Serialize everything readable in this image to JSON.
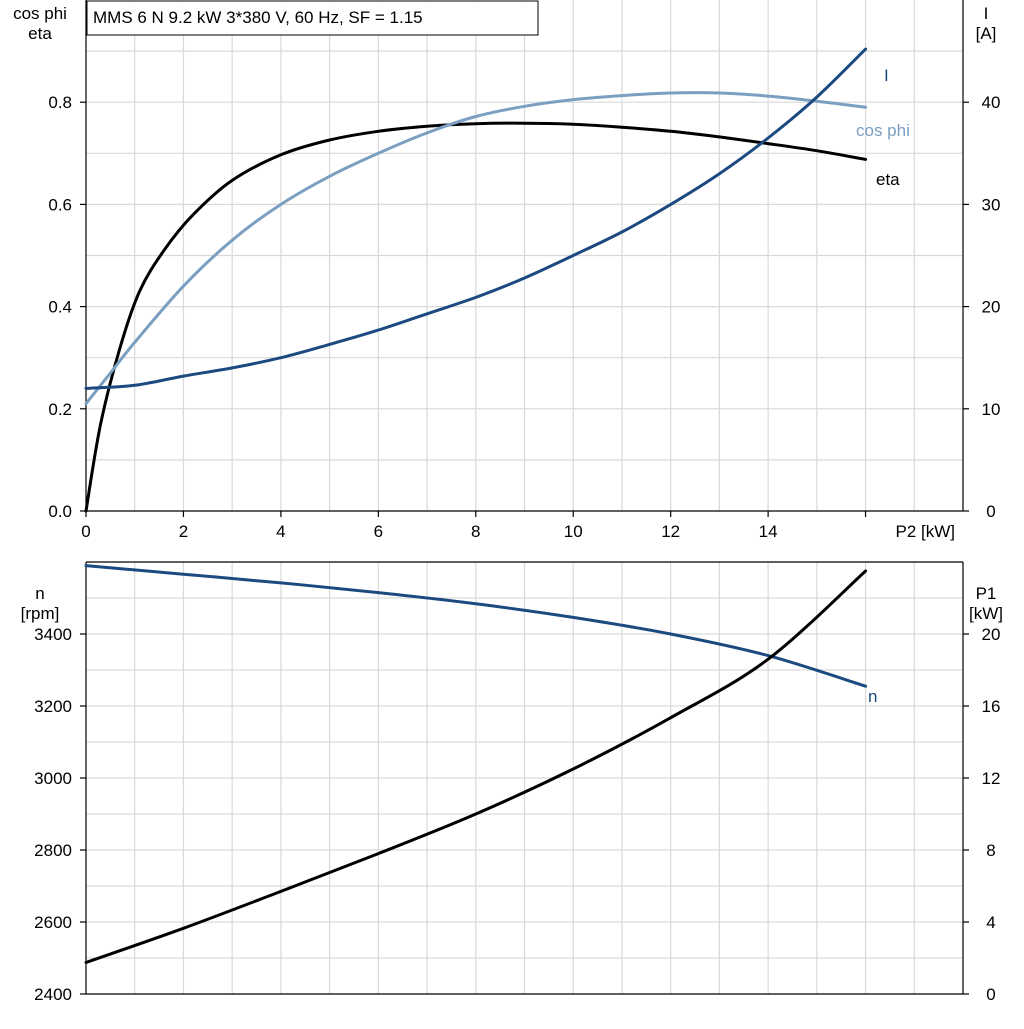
{
  "chart_data": [
    {
      "type": "line",
      "title": "MMS 6 N   9.2 kW   3*380 V, 60 Hz, SF = 1.15",
      "xlabel": "P2 [kW]",
      "xlim": [
        0,
        18
      ],
      "x_ticks": [
        0,
        2,
        4,
        6,
        8,
        10,
        12,
        14
      ],
      "x_tick_labels": [
        "0",
        "2",
        "4",
        "6",
        "8",
        "10",
        "12",
        "14"
      ],
      "y_left": {
        "label_lines": [
          "cos phi",
          "eta"
        ],
        "lim": [
          0,
          1.0
        ],
        "ticks": [
          0,
          0.2,
          0.4,
          0.6,
          0.8
        ],
        "tick_labels": [
          "0.0",
          "0.2",
          "0.4",
          "0.6",
          "0.8"
        ]
      },
      "y_right": {
        "label_lines": [
          "I",
          "[A]"
        ],
        "lim": [
          0,
          50
        ],
        "ticks": [
          0,
          10,
          20,
          30,
          40
        ],
        "tick_labels": [
          "0",
          "10",
          "20",
          "30",
          "40"
        ]
      },
      "grid": true,
      "series": [
        {
          "name": "eta",
          "axis": "left",
          "color": "#000000",
          "x": [
            0,
            0.3,
            0.7,
            1.1,
            1.6,
            2.2,
            3.0,
            4.0,
            5.0,
            6.0,
            7.0,
            8.0,
            9.0,
            10.0,
            11.0,
            12.0,
            13.0,
            14.0,
            15.0,
            16.0
          ],
          "y": [
            0.0,
            0.17,
            0.32,
            0.43,
            0.51,
            0.58,
            0.647,
            0.697,
            0.726,
            0.743,
            0.753,
            0.758,
            0.759,
            0.757,
            0.751,
            0.743,
            0.732,
            0.719,
            0.705,
            0.688
          ]
        },
        {
          "name": "cos phi",
          "axis": "left",
          "color": "#7b9fc0",
          "x": [
            0,
            0.5,
            1.0,
            2.0,
            3.0,
            4.0,
            5.0,
            6.0,
            7.0,
            8.0,
            9.0,
            10.0,
            11.0,
            12.0,
            13.0,
            14.0,
            15.0,
            16.0
          ],
          "y": [
            0.21,
            0.27,
            0.33,
            0.44,
            0.53,
            0.6,
            0.655,
            0.7,
            0.74,
            0.772,
            0.792,
            0.805,
            0.813,
            0.818,
            0.818,
            0.812,
            0.802,
            0.79
          ]
        },
        {
          "name": "I",
          "axis": "right",
          "color": "#1c4a80",
          "x": [
            0,
            1,
            2,
            3,
            4,
            5,
            6,
            7,
            8,
            9,
            10,
            11,
            12,
            13,
            14,
            15,
            16
          ],
          "y": [
            12.0,
            12.3,
            13.2,
            14.0,
            15.0,
            16.3,
            17.7,
            19.3,
            20.9,
            22.8,
            25.0,
            27.3,
            30.0,
            33.0,
            36.5,
            40.5,
            45.2
          ]
        }
      ]
    },
    {
      "type": "line",
      "xlim": [
        0,
        18
      ],
      "y_left": {
        "label_lines": [
          "n",
          "[rpm]"
        ],
        "lim": [
          2400,
          3600
        ],
        "ticks": [
          2400,
          2600,
          2800,
          3000,
          3200,
          3400
        ],
        "tick_labels": [
          "2400",
          "2600",
          "2800",
          "3000",
          "3200",
          "3400"
        ]
      },
      "y_right": {
        "label_lines": [
          "P1",
          "[kW]"
        ],
        "lim": [
          0,
          24
        ],
        "ticks": [
          0,
          4,
          8,
          12,
          16,
          20
        ],
        "tick_labels": [
          "0",
          "4",
          "8",
          "12",
          "16",
          "20"
        ]
      },
      "grid": true,
      "series": [
        {
          "name": "n",
          "axis": "left",
          "color": "#1c4a80",
          "x": [
            0,
            2,
            4,
            6,
            8,
            10,
            12,
            14,
            16
          ],
          "y": [
            3590,
            3566,
            3542,
            3515,
            3484,
            3446,
            3400,
            3340,
            3255
          ]
        },
        {
          "name": "",
          "axis": "right",
          "color": "#000000",
          "x": [
            0,
            2,
            4,
            6,
            8,
            10,
            12,
            14,
            16
          ],
          "y": [
            1.75,
            3.65,
            5.7,
            7.8,
            10.0,
            12.5,
            15.35,
            18.6,
            23.5
          ]
        }
      ]
    }
  ]
}
